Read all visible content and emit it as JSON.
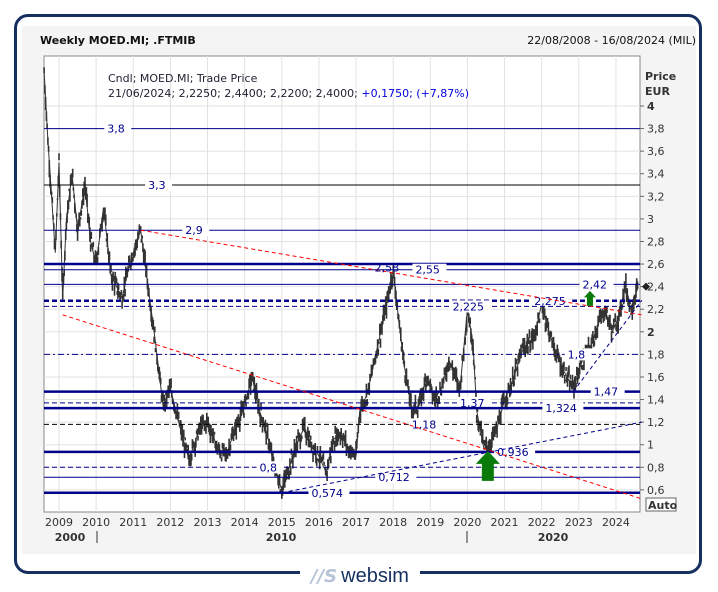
{
  "header": {
    "title": "Weekly MOED.MI; .FTMIB",
    "date_range": "22/08/2008 - 16/08/2024 (MIL)"
  },
  "legend": {
    "line1": "Cndl; MOED.MI; Trade Price",
    "line2_values": "21/06/2024; 2,2250; 2,4400; 2,2200; 2,4000;",
    "line2_change": "+0,1750; (+7,87%)"
  },
  "footer": {
    "logo_text": "websim",
    "logo_mark": "//S"
  },
  "colors": {
    "level": "#00008b",
    "trend_red": "#ff0000",
    "price": "#333333",
    "arrow": "#0a7a0a",
    "frame": "#15305e"
  },
  "chart_data": {
    "type": "candlestick",
    "ylabel": "Price",
    "yunit": "EUR",
    "ylim": [
      0.4,
      4.44
    ],
    "xlim": [
      2008.6,
      2024.7
    ],
    "yticks": [
      "4",
      "3,8",
      "3,6",
      "3,4",
      "3,2",
      "3",
      "2,8",
      "2,6",
      "2,4",
      "2,2",
      "2",
      "1,8",
      "1,6",
      "1,4",
      "1,2",
      "1",
      "0,8",
      "0,6"
    ],
    "ytick_values": [
      4,
      3.8,
      3.6,
      3.4,
      3.2,
      3,
      2.8,
      2.6,
      2.4,
      2.2,
      2,
      1.8,
      1.6,
      1.4,
      1.2,
      1,
      0.8,
      0.6
    ],
    "xticks": [
      "2009",
      "2010",
      "2011",
      "2012",
      "2013",
      "2014",
      "2015",
      "2016",
      "2017",
      "2018",
      "2019",
      "2020",
      "2021",
      "2022",
      "2023",
      "2024"
    ],
    "decades": [
      "2000",
      "2010",
      "2020"
    ],
    "auto_label": "Auto",
    "grid": true,
    "last_price": 2.4,
    "price_points": [
      [
        2008.6,
        4.3
      ],
      [
        2008.7,
        3.7
      ],
      [
        2008.8,
        3.2
      ],
      [
        2008.9,
        2.7
      ],
      [
        2009.0,
        3.5
      ],
      [
        2009.1,
        2.3
      ],
      [
        2009.2,
        3.0
      ],
      [
        2009.35,
        3.4
      ],
      [
        2009.5,
        2.9
      ],
      [
        2009.7,
        3.3
      ],
      [
        2009.85,
        2.8
      ],
      [
        2010.0,
        2.6
      ],
      [
        2010.2,
        3.1
      ],
      [
        2010.4,
        2.5
      ],
      [
        2010.7,
        2.3
      ],
      [
        2010.9,
        2.6
      ],
      [
        2011.2,
        2.9
      ],
      [
        2011.4,
        2.4
      ],
      [
        2011.6,
        1.9
      ],
      [
        2011.8,
        1.35
      ],
      [
        2012.0,
        1.5
      ],
      [
        2012.3,
        1.1
      ],
      [
        2012.5,
        0.87
      ],
      [
        2012.8,
        1.15
      ],
      [
        2013.0,
        1.2
      ],
      [
        2013.3,
        0.95
      ],
      [
        2013.5,
        0.9
      ],
      [
        2013.7,
        1.1
      ],
      [
        2014.0,
        1.35
      ],
      [
        2014.2,
        1.6
      ],
      [
        2014.4,
        1.3
      ],
      [
        2014.6,
        1.1
      ],
      [
        2014.8,
        0.8
      ],
      [
        2015.0,
        0.6
      ],
      [
        2015.2,
        0.8
      ],
      [
        2015.4,
        1.0
      ],
      [
        2015.6,
        1.15
      ],
      [
        2015.8,
        1.0
      ],
      [
        2016.0,
        0.9
      ],
      [
        2016.2,
        0.75
      ],
      [
        2016.4,
        1.05
      ],
      [
        2016.6,
        1.1
      ],
      [
        2016.8,
        0.95
      ],
      [
        2017.0,
        0.9
      ],
      [
        2017.1,
        1.3
      ],
      [
        2017.3,
        1.45
      ],
      [
        2017.6,
        1.9
      ],
      [
        2017.8,
        2.2
      ],
      [
        2018.0,
        2.55
      ],
      [
        2018.15,
        2.1
      ],
      [
        2018.3,
        1.7
      ],
      [
        2018.5,
        1.3
      ],
      [
        2018.7,
        1.35
      ],
      [
        2018.9,
        1.6
      ],
      [
        2019.1,
        1.4
      ],
      [
        2019.3,
        1.5
      ],
      [
        2019.5,
        1.75
      ],
      [
        2019.8,
        1.5
      ],
      [
        2020.0,
        2.2
      ],
      [
        2020.15,
        1.9
      ],
      [
        2020.25,
        1.3
      ],
      [
        2020.45,
        0.96
      ],
      [
        2020.6,
        1.0
      ],
      [
        2020.8,
        1.15
      ],
      [
        2021.0,
        1.4
      ],
      [
        2021.2,
        1.55
      ],
      [
        2021.5,
        1.85
      ],
      [
        2021.8,
        1.95
      ],
      [
        2022.0,
        2.25
      ],
      [
        2022.2,
        2.0
      ],
      [
        2022.4,
        1.8
      ],
      [
        2022.6,
        1.65
      ],
      [
        2022.85,
        1.5
      ],
      [
        2023.1,
        1.75
      ],
      [
        2023.3,
        1.85
      ],
      [
        2023.5,
        2.05
      ],
      [
        2023.7,
        2.2
      ],
      [
        2023.9,
        2.0
      ],
      [
        2024.1,
        2.15
      ],
      [
        2024.25,
        2.42
      ],
      [
        2024.4,
        2.2
      ],
      [
        2024.6,
        2.4
      ]
    ],
    "levels": [
      {
        "value": 3.8,
        "label": "3,8",
        "style": "solid",
        "weight": "thin",
        "label_year": 2010.3
      },
      {
        "value": 3.3,
        "label": "3,3",
        "style": "solid-black",
        "weight": "thin",
        "label_year": 2011.4
      },
      {
        "value": 2.9,
        "label": "2,9",
        "style": "solid",
        "weight": "thin",
        "label_year": 2012.4
      },
      {
        "value": 2.6,
        "label": "",
        "style": "solid",
        "weight": "thick",
        "label_year": null
      },
      {
        "value": 2.55,
        "label": "2,55",
        "style": "solid",
        "weight": "thin",
        "label_year": 2018.6
      },
      {
        "value": 2.42,
        "label": "2,42",
        "style": "solid",
        "weight": "thin",
        "label_year": 2023.1
      },
      {
        "value": 2.275,
        "label": "2,275",
        "style": "dashed",
        "weight": "thick",
        "label_year": 2021.8
      },
      {
        "value": 2.225,
        "label": "2,225",
        "style": "dashed",
        "weight": "thin",
        "label_year": 2019.6
      },
      {
        "value": 1.8,
        "label": "1,8",
        "style": "dashdot",
        "weight": "thin",
        "label_year": 2022.7
      },
      {
        "value": 1.47,
        "label": "1,47",
        "style": "solid",
        "weight": "thick",
        "label_year": 2023.4
      },
      {
        "value": 1.37,
        "label": "1,37",
        "style": "dashed",
        "weight": "thin",
        "label_year": 2019.8
      },
      {
        "value": 1.324,
        "label": "1,324",
        "style": "solid",
        "weight": "thick",
        "label_year": 2022.1
      },
      {
        "value": 1.18,
        "label": "1,18",
        "style": "dashed-black",
        "weight": "thin",
        "label_year": 2018.5
      },
      {
        "value": 0.936,
        "label": "0,936",
        "style": "solid",
        "weight": "thick",
        "label_year": 2020.8
      },
      {
        "value": 0.8,
        "label": "0,8",
        "style": "dashed",
        "weight": "thin",
        "label_year": 2014.4
      },
      {
        "value": 0.712,
        "label": "0,712",
        "style": "solid",
        "weight": "thin",
        "label_year": 2017.6
      },
      {
        "value": 0.574,
        "label": "0,574",
        "style": "solid",
        "weight": "thick",
        "label_year": 2015.8
      }
    ],
    "trendlines": [
      {
        "color": "red",
        "from": [
          2011.2,
          2.9
        ],
        "to": [
          2024.7,
          2.15
        ],
        "label": "2,58",
        "label_year": 2017.5
      },
      {
        "color": "red",
        "from": [
          2009.1,
          2.15
        ],
        "to": [
          2024.7,
          0.52
        ],
        "label": "",
        "label_year": null
      },
      {
        "color": "blue",
        "from": [
          2015.0,
          0.574
        ],
        "to": [
          2024.7,
          1.2
        ],
        "label": "",
        "label_year": null
      },
      {
        "color": "blue",
        "from": [
          2022.85,
          1.47
        ],
        "to": [
          2024.7,
          2.28
        ],
        "label": "",
        "label_year": null
      }
    ],
    "arrows": [
      {
        "year": 2020.55,
        "value": 0.68,
        "size": "large"
      },
      {
        "year": 2023.3,
        "value": 2.23,
        "size": "small"
      }
    ]
  }
}
